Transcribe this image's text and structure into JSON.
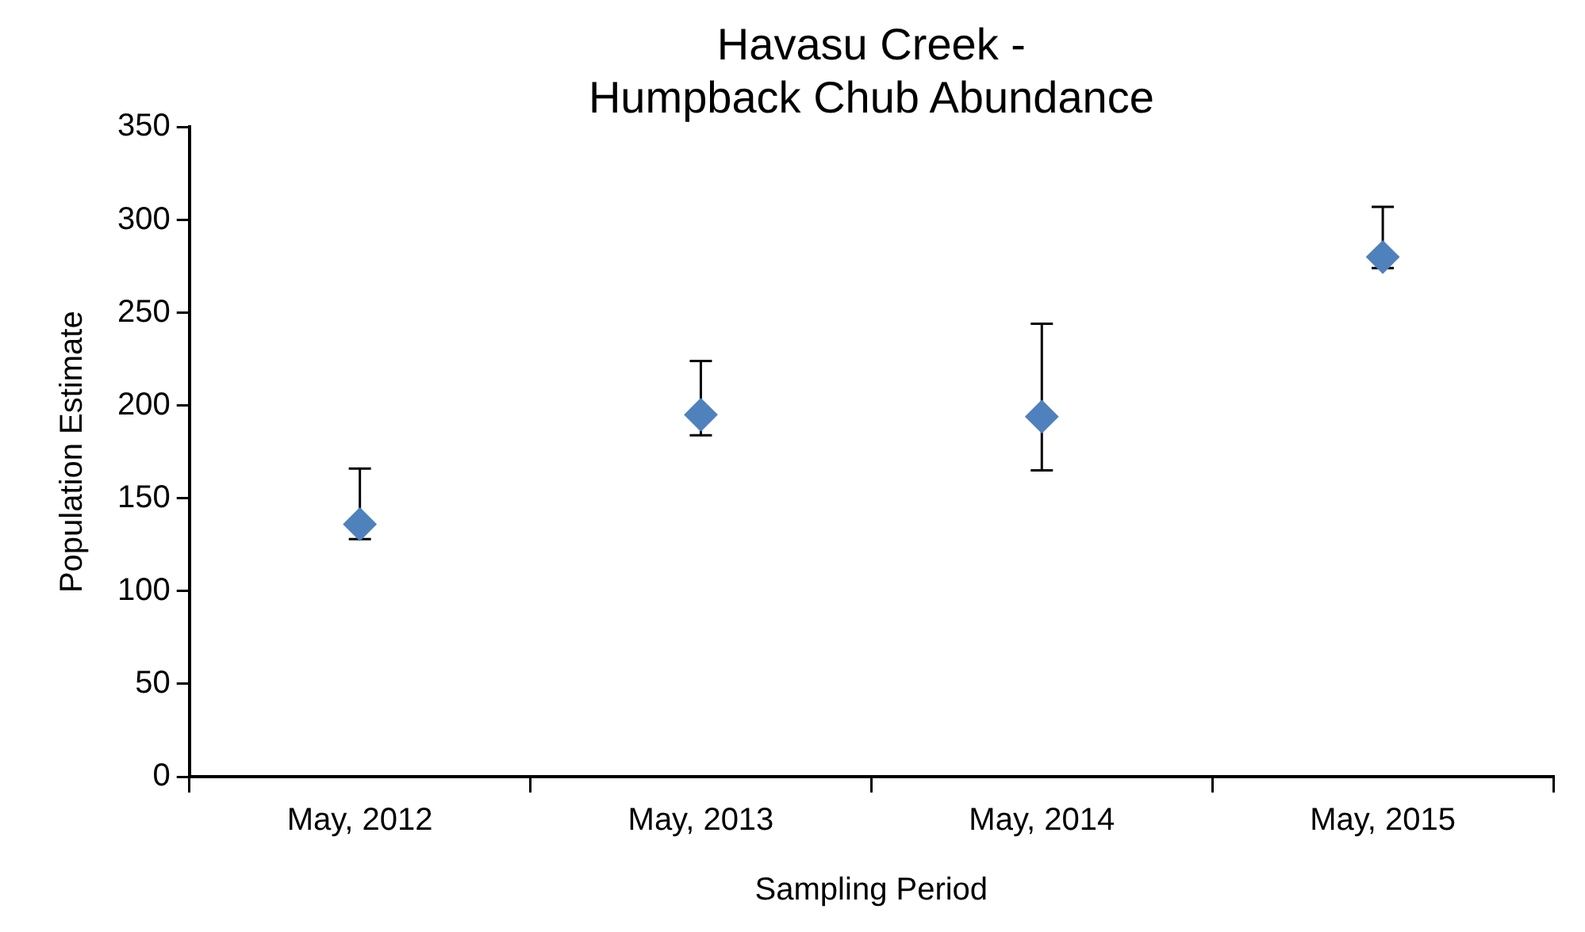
{
  "chart_data": {
    "type": "scatter",
    "title": "Havasu Creek -\nHumpback Chub Abundance",
    "xlabel": "Sampling Period",
    "ylabel": "Population Estimate",
    "categories": [
      "May, 2012",
      "May, 2013",
      "May, 2014",
      "May, 2015"
    ],
    "series": [
      {
        "color": "#4f81bd",
        "values": [
          136,
          195,
          194,
          280
        ],
        "errors": [
          [
            128,
            166
          ],
          [
            184,
            224
          ],
          [
            165,
            244
          ],
          [
            274,
            307
          ]
        ]
      }
    ],
    "ylim": [
      0,
      350
    ],
    "yticks": [
      0,
      50,
      100,
      150,
      200,
      250,
      300,
      350
    ],
    "grid": false,
    "legend": false,
    "marker": "diamond"
  }
}
